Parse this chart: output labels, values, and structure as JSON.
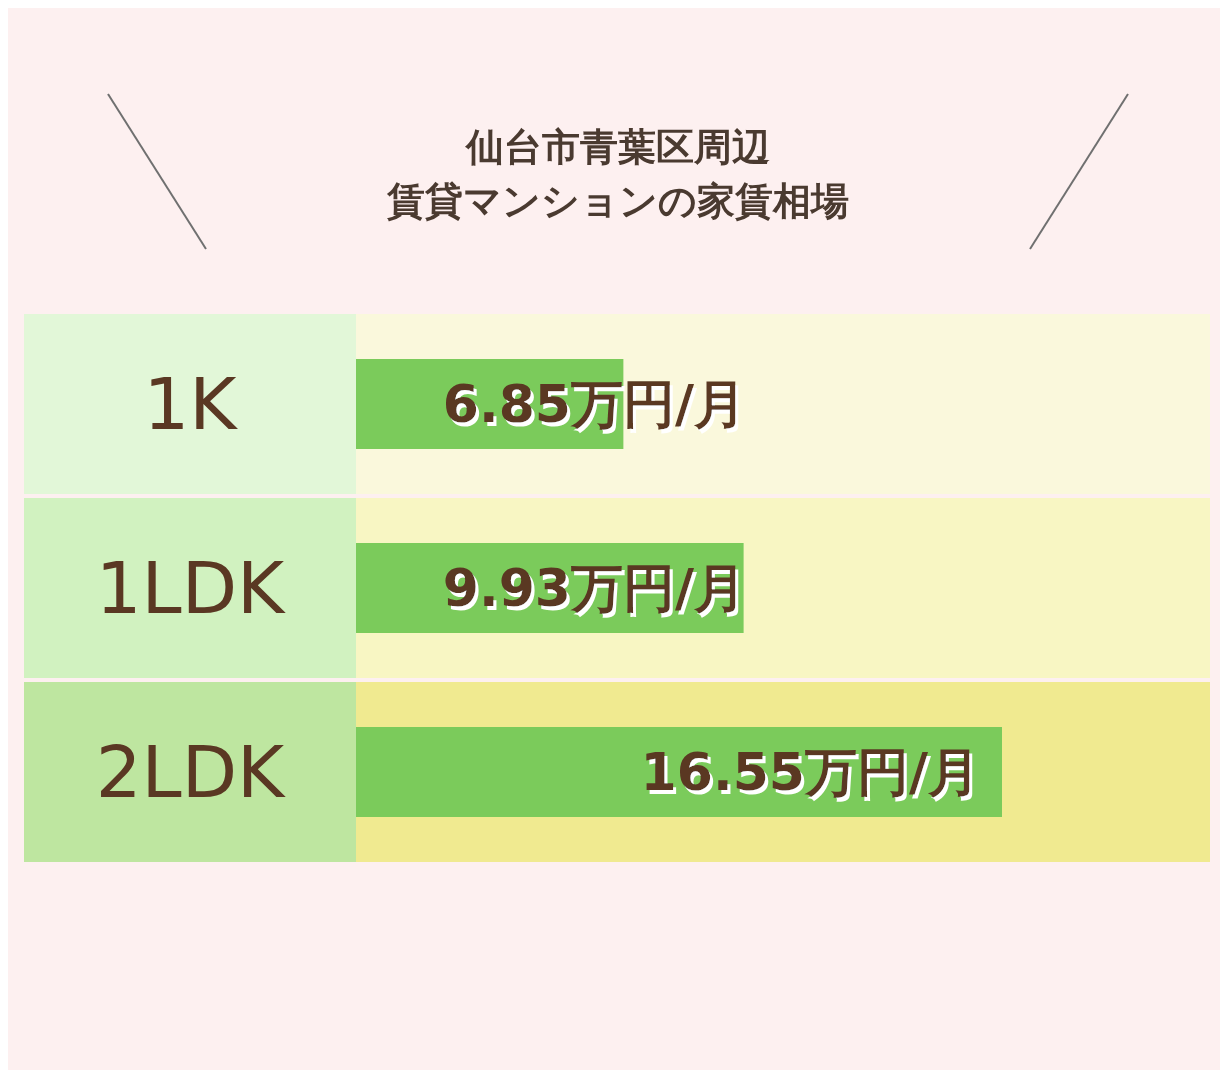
{
  "chart_data": {
    "type": "bar",
    "orientation": "horizontal",
    "title": "仙台市青葉区周辺",
    "subtitle": "賃貸マンションの家賃相場",
    "categories": [
      "1K",
      "1LDK",
      "2LDK"
    ],
    "values": [
      6.85,
      9.93,
      16.55
    ],
    "value_labels": [
      "6.85万円/月",
      "9.93万円/月",
      "16.55万円/月"
    ],
    "color": "#7bcb5b",
    "tick_labels": "y",
    "bands": [
      {
        "axis": "y",
        "from": "1K",
        "to": "1K",
        "color": "#faf8dc"
      },
      {
        "axis": "y",
        "from": "1LDK",
        "to": "1LDK",
        "color": "#f8f6c3"
      },
      {
        "axis": "y",
        "from": "2LDK",
        "to": "2LDK",
        "color": "#f0ea90"
      }
    ]
  }
}
